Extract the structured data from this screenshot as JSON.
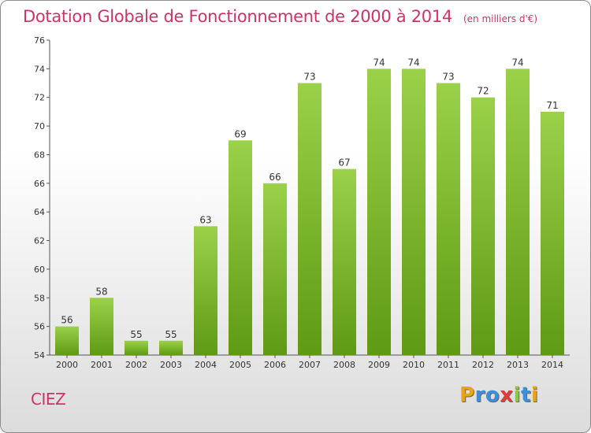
{
  "title": "Dotation Globale de Fonctionnement de 2000 à 2014",
  "unit_note": "(en milliers d'€)",
  "commune": "CIEZ",
  "logo": {
    "letters": [
      "P",
      "r",
      "o",
      "x",
      "i",
      "t",
      "i"
    ],
    "colors": [
      "#e8a317",
      "#3a8fd8",
      "#3a8fd8",
      "#e23a3a",
      "#8dc63f",
      "#3a8fd8",
      "#e8a317"
    ]
  },
  "colors": {
    "bar_top": "#9bd14a",
    "bar_bottom": "#5e9a14",
    "title": "#cc3366"
  },
  "chart_data": {
    "type": "bar",
    "title": "Dotation Globale de Fonctionnement de 2000 à 2014",
    "subtitle": "(en milliers d'€)",
    "xlabel": "",
    "ylabel": "",
    "ylim": [
      54,
      76
    ],
    "yticks": [
      54,
      56,
      58,
      60,
      62,
      64,
      66,
      68,
      70,
      72,
      74,
      76
    ],
    "grid": false,
    "categories": [
      "2000",
      "2001",
      "2002",
      "2003",
      "2004",
      "2005",
      "2006",
      "2007",
      "2008",
      "2009",
      "2010",
      "2011",
      "2012",
      "2013",
      "2014"
    ],
    "values": [
      56,
      58,
      55,
      55,
      63,
      69,
      66,
      73,
      67,
      74,
      74,
      73,
      72,
      74,
      71
    ]
  }
}
